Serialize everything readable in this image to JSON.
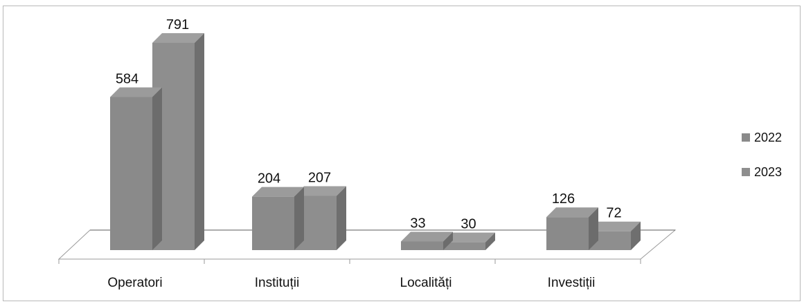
{
  "chart_data": {
    "type": "bar",
    "style": "3d-clustered",
    "categories": [
      "Operatori",
      "Instituții",
      "Localități",
      "Investiții"
    ],
    "series": [
      {
        "name": "2022",
        "values": [
          584,
          204,
          33,
          126
        ],
        "color": "#8a8a8a"
      },
      {
        "name": "2023",
        "values": [
          791,
          207,
          30,
          72
        ],
        "color": "#8e8e8e"
      }
    ],
    "title": "",
    "xlabel": "",
    "ylabel": "",
    "ylim": [
      0,
      791
    ],
    "grid": false,
    "legend_position": "right"
  }
}
